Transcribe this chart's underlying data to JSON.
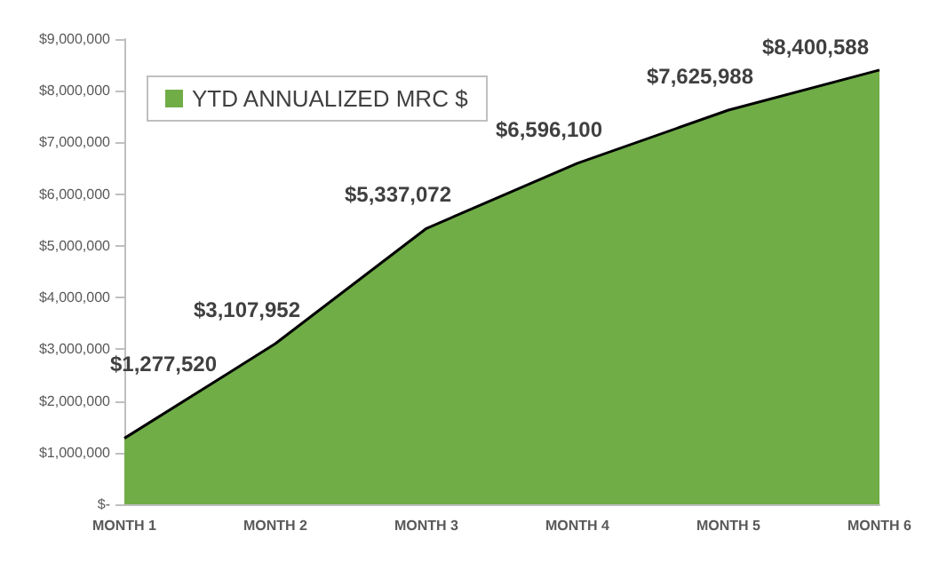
{
  "chart_data": {
    "type": "area",
    "categories": [
      "MONTH 1",
      "MONTH 2",
      "MONTH 3",
      "MONTH 4",
      "MONTH 5",
      "MONTH 6"
    ],
    "series": [
      {
        "name": "YTD ANNUALIZED MRC $",
        "color": "#70ad47",
        "values": [
          1277520,
          3107952,
          5337072,
          6596100,
          7625988,
          8400588
        ],
        "value_labels": [
          "$1,277,520",
          "$3,107,952",
          "$5,337,072",
          "$6,596,100",
          "$7,625,988",
          "$8,400,588"
        ]
      }
    ],
    "ylim": [
      0,
      9000000
    ],
    "yticks": [
      {
        "value": 0,
        "label": "$-"
      },
      {
        "value": 1000000,
        "label": "$1,000,000"
      },
      {
        "value": 2000000,
        "label": "$2,000,000"
      },
      {
        "value": 3000000,
        "label": "$3,000,000"
      },
      {
        "value": 4000000,
        "label": "$4,000,000"
      },
      {
        "value": 5000000,
        "label": "$5,000,000"
      },
      {
        "value": 6000000,
        "label": "$6,000,000"
      },
      {
        "value": 7000000,
        "label": "$7,000,000"
      },
      {
        "value": 8000000,
        "label": "$8,000,000"
      },
      {
        "value": 9000000,
        "label": "$9,000,000"
      }
    ],
    "grid": false,
    "legend": "top left"
  }
}
